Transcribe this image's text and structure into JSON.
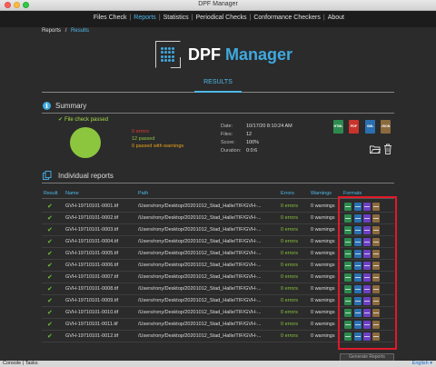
{
  "window": {
    "title": "DPF Manager"
  },
  "nav": {
    "items": [
      {
        "label": "Files Check",
        "active": false
      },
      {
        "label": "Reports",
        "active": true
      },
      {
        "label": "Statistics",
        "active": false
      },
      {
        "label": "Periodical Checks",
        "active": false
      },
      {
        "label": "Conformance Checkers",
        "active": false
      },
      {
        "label": "About",
        "active": false
      }
    ]
  },
  "breadcrumb": {
    "root": "Reports",
    "separator": "/",
    "current": "Results"
  },
  "logo": {
    "text_white": "DPF ",
    "text_accent": "Manager",
    "icon": "dot-grid-icon"
  },
  "results_tab": "RESULTS",
  "summary": {
    "title": "Summary",
    "check_label": "File check passed",
    "errors": "0 errors",
    "passed": "12 passed",
    "passed_warnings": "0 passed with warnings",
    "meta": [
      {
        "label": "Date:",
        "value": "10/17/20 8:10:24 AM"
      },
      {
        "label": "Files:",
        "value": "12"
      },
      {
        "label": "Score:",
        "value": "100%"
      },
      {
        "label": "Duration:",
        "value": "0:0:6"
      }
    ],
    "formats": [
      "HTML",
      "PDF",
      "XML",
      "JSON"
    ],
    "result_color": "#8cc63f"
  },
  "reports": {
    "title": "Individual reports",
    "columns": {
      "result": "Result",
      "name": "Name",
      "path": "Path",
      "errors": "Errors",
      "warnings": "Warnings",
      "formats": "Formats"
    },
    "rows": [
      {
        "name": "GVH-19710101-0001.tif",
        "path": "/Users/rony/Desktop/20201012_Stad_Halle/TIF/GVH-...",
        "errors": "0 errors",
        "warnings": "0 warnings"
      },
      {
        "name": "GVH-19710101-0002.tif",
        "path": "/Users/rony/Desktop/20201012_Stad_Halle/TIF/GVH-...",
        "errors": "0 errors",
        "warnings": "0 warnings"
      },
      {
        "name": "GVH-19710101-0003.tif",
        "path": "/Users/rony/Desktop/20201012_Stad_Halle/TIF/GVH-...",
        "errors": "0 errors",
        "warnings": "0 warnings"
      },
      {
        "name": "GVH-19710101-0004.tif",
        "path": "/Users/rony/Desktop/20201012_Stad_Halle/TIF/GVH-...",
        "errors": "0 errors",
        "warnings": "0 warnings"
      },
      {
        "name": "GVH-19710101-0005.tif",
        "path": "/Users/rony/Desktop/20201012_Stad_Halle/TIF/GVH-...",
        "errors": "0 errors",
        "warnings": "0 warnings"
      },
      {
        "name": "GVH-19710101-0006.tif",
        "path": "/Users/rony/Desktop/20201012_Stad_Halle/TIF/GVH-...",
        "errors": "0 errors",
        "warnings": "0 warnings"
      },
      {
        "name": "GVH-19710101-0007.tif",
        "path": "/Users/rony/Desktop/20201012_Stad_Halle/TIF/GVH-...",
        "errors": "0 errors",
        "warnings": "0 warnings"
      },
      {
        "name": "GVH-19710101-0008.tif",
        "path": "/Users/rony/Desktop/20201012_Stad_Halle/TIF/GVH-...",
        "errors": "0 errors",
        "warnings": "0 warnings"
      },
      {
        "name": "GVH-19710101-0009.tif",
        "path": "/Users/rony/Desktop/20201012_Stad_Halle/TIF/GVH-...",
        "errors": "0 errors",
        "warnings": "0 warnings"
      },
      {
        "name": "GVH-19710101-0010.tif",
        "path": "/Users/rony/Desktop/20201012_Stad_Halle/TIF/GVH-...",
        "errors": "0 errors",
        "warnings": "0 warnings"
      },
      {
        "name": "GVH-19710101-0011.tif",
        "path": "/Users/rony/Desktop/20201012_Stad_Halle/TIF/GVH-...",
        "errors": "0 errors",
        "warnings": "0 warnings"
      },
      {
        "name": "GVH-19710101-0012.tif",
        "path": "/Users/rony/Desktop/20201012_Stad_Halle/TIF/GVH-...",
        "errors": "0 errors",
        "warnings": "0 warnings"
      }
    ],
    "generate_button": "Generate Reports"
  },
  "statusbar": {
    "console": "Console",
    "separator": "|",
    "tasks": "Tasks",
    "language": "English"
  },
  "colors": {
    "accent": "#4db8e8",
    "highlight": "#e0192a",
    "ok": "#8cc63f",
    "error": "#e03c31",
    "warning": "#e8a21c"
  }
}
